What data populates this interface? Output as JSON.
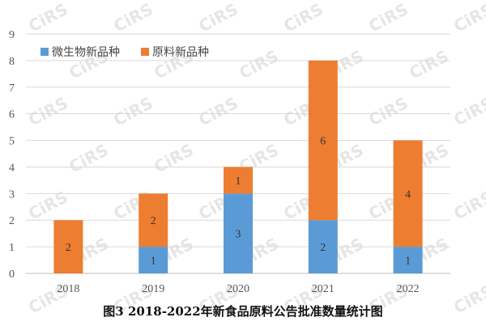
{
  "chart_data": {
    "type": "bar",
    "stacked": true,
    "categories": [
      "2018",
      "2019",
      "2020",
      "2021",
      "2022"
    ],
    "series": [
      {
        "name": "微生物新品种",
        "color": "#5b9bd5",
        "values": [
          0,
          1,
          3,
          2,
          1
        ]
      },
      {
        "name": "原料新品种",
        "color": "#ed7d31",
        "values": [
          2,
          2,
          1,
          6,
          4
        ]
      }
    ],
    "title": "图3 2018-2022年新食品原料公告批准数量统计图",
    "xlabel": "",
    "ylabel": "",
    "ylim": [
      0,
      9
    ],
    "yticks": [
      0,
      1,
      2,
      3,
      4,
      5,
      6,
      7,
      8,
      9
    ],
    "grid": true,
    "legend_position": "top-left"
  },
  "watermark": {
    "text": "CiRS",
    "color": "#e6e6e6"
  }
}
